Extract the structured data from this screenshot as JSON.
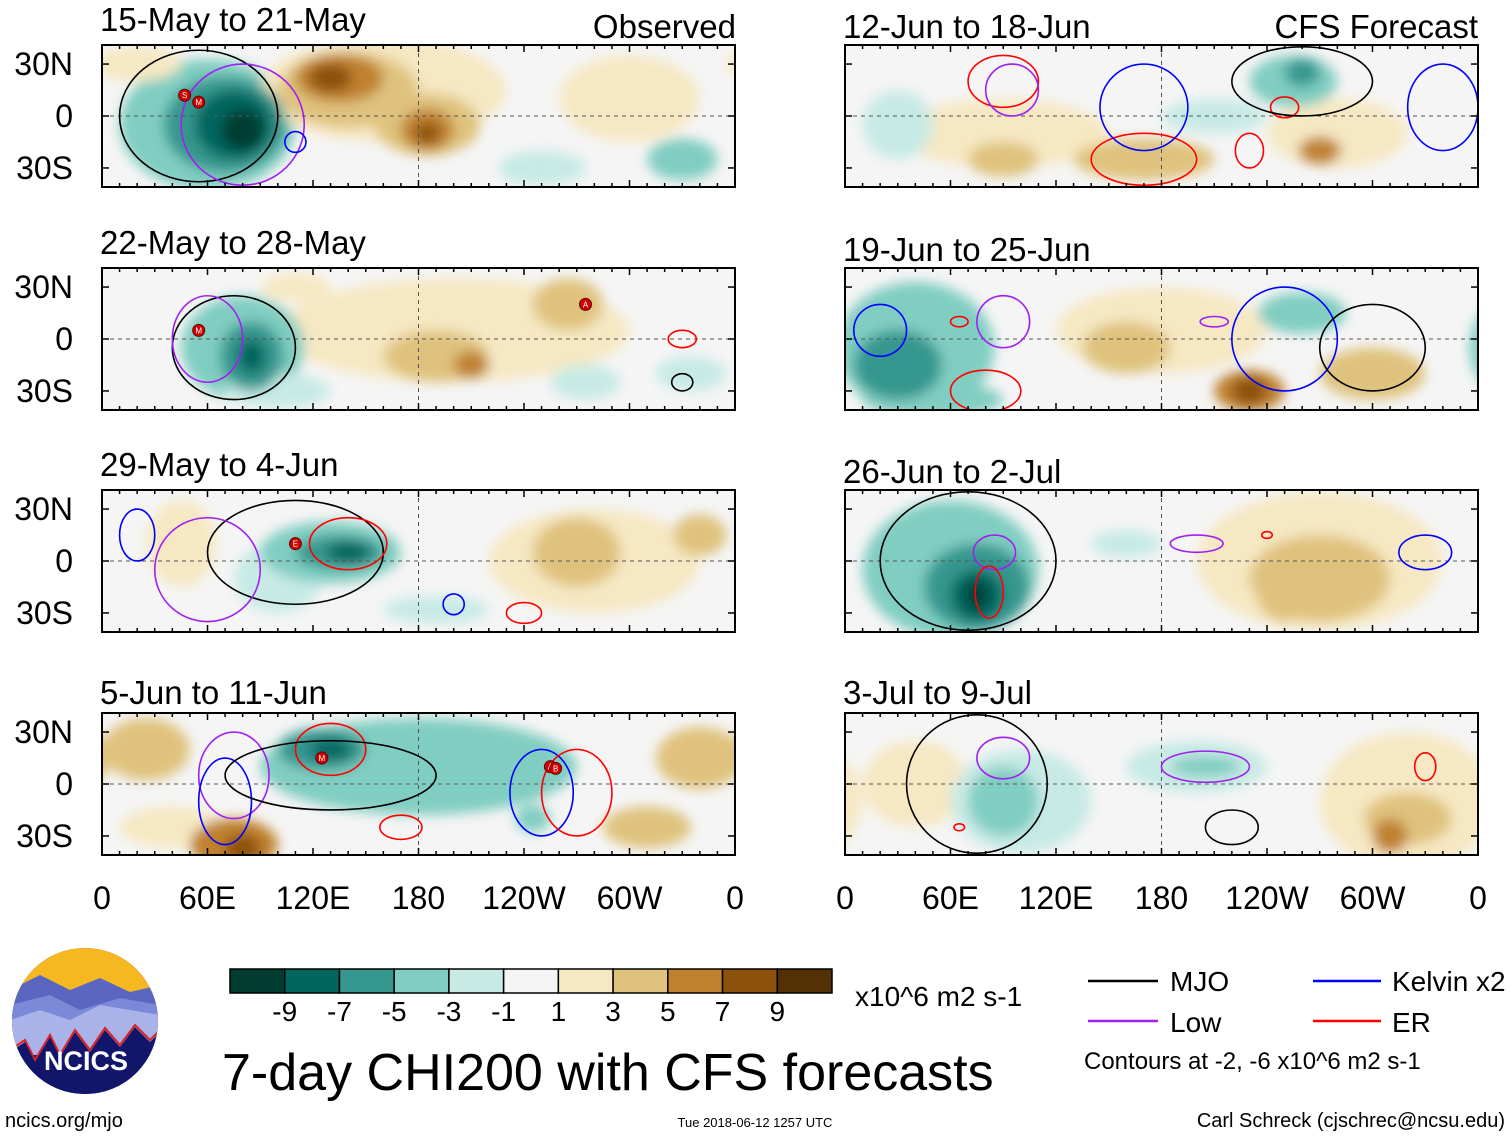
{
  "figure": {
    "title": "7-day CHI200 with CFS forecasts",
    "website": "ncics.org/mjo",
    "timestamp": "Tue 2018-06-12 1257 UTC",
    "author": "Carl Schreck (cjschrec@ncsu.edu)",
    "logo_text": "NCICS",
    "observed_label": "Observed",
    "forecast_label": "CFS Forecast"
  },
  "axes": {
    "lat_labels": [
      "30N",
      "0",
      "30S"
    ],
    "lon_labels": [
      "0",
      "60E",
      "120E",
      "180",
      "120W",
      "60W",
      "0"
    ]
  },
  "colorbar": {
    "units": "x10^6 m2 s-1",
    "labels": [
      "-9",
      "-7",
      "-5",
      "-3",
      "-1",
      "1",
      "3",
      "5",
      "7",
      "9"
    ],
    "colors": [
      "#003c30",
      "#01665e",
      "#35978f",
      "#80cdc1",
      "#c7eae5",
      "#f5f5f5",
      "#f6e8c3",
      "#dfc27d",
      "#bf812d",
      "#8c510a",
      "#543005"
    ]
  },
  "legend": {
    "items": [
      {
        "label": "MJO",
        "color": "#000000"
      },
      {
        "label": "Kelvin x2",
        "color": "#0000ff"
      },
      {
        "label": "Low",
        "color": "#a020f0"
      },
      {
        "label": "ER",
        "color": "#ff0000"
      }
    ],
    "note": "Contours at -2, -6 x10^6 m2 s-1"
  },
  "chart_data": {
    "type": "map",
    "variable": "CHI200 anomaly",
    "lon_range": [
      0,
      360
    ],
    "lat_range": [
      -40,
      40
    ],
    "panels": [
      {
        "title": "15-May to 21-May",
        "kind": "observed",
        "shades": [
          [
            60,
            -5,
            50,
            38,
            -3
          ],
          [
            20,
            30,
            25,
            10,
            1
          ],
          [
            300,
            10,
            40,
            25,
            1
          ],
          [
            160,
            15,
            70,
            30,
            1
          ],
          [
            140,
            15,
            40,
            22,
            3
          ],
          [
            185,
            -5,
            30,
            18,
            3
          ],
          [
            135,
            22,
            25,
            14,
            5
          ],
          [
            185,
            -8,
            15,
            12,
            5
          ],
          [
            185,
            -10,
            7,
            6,
            7
          ],
          [
            130,
            22,
            12,
            8,
            7
          ],
          [
            250,
            -30,
            25,
            10,
            -1
          ],
          [
            330,
            -25,
            20,
            12,
            -3
          ],
          [
            70,
            -5,
            35,
            28,
            -5
          ],
          [
            75,
            -5,
            22,
            20,
            -7
          ],
          [
            80,
            -8,
            12,
            12,
            -9
          ]
        ],
        "contours": [
          [
            55,
            0,
            45,
            38,
            "MJO"
          ],
          [
            80,
            -5,
            35,
            35,
            "Low"
          ],
          [
            110,
            -15,
            6,
            6,
            "Kelvin"
          ]
        ],
        "storms": [
          [
            47,
            12,
            "S"
          ],
          [
            55,
            8,
            "M"
          ]
        ]
      },
      {
        "title": "22-May to 28-May",
        "kind": "observed",
        "shades": [
          [
            200,
            5,
            100,
            30,
            1
          ],
          [
            110,
            30,
            20,
            8,
            1
          ],
          [
            190,
            -10,
            30,
            15,
            3
          ],
          [
            265,
            20,
            20,
            15,
            3
          ],
          [
            210,
            -15,
            10,
            8,
            5
          ],
          [
            80,
            -5,
            35,
            30,
            -3
          ],
          [
            100,
            -30,
            30,
            10,
            -1
          ],
          [
            275,
            -25,
            20,
            10,
            -1
          ],
          [
            335,
            -20,
            20,
            10,
            -1
          ],
          [
            85,
            -10,
            18,
            20,
            -5
          ],
          [
            85,
            -10,
            8,
            10,
            -7
          ]
        ],
        "contours": [
          [
            75,
            -5,
            35,
            30,
            "MJO"
          ],
          [
            60,
            0,
            20,
            25,
            "Low"
          ],
          [
            330,
            0,
            8,
            5,
            "ER"
          ],
          [
            330,
            -25,
            6,
            5,
            "MJO"
          ]
        ],
        "storms": [
          [
            55,
            5,
            "M"
          ],
          [
            275,
            20,
            "A"
          ]
        ]
      },
      {
        "title": "29-May to 4-Jun",
        "kind": "observed",
        "shades": [
          [
            280,
            0,
            60,
            30,
            1
          ],
          [
            45,
            10,
            20,
            25,
            1
          ],
          [
            270,
            5,
            25,
            20,
            3
          ],
          [
            340,
            15,
            15,
            12,
            3
          ],
          [
            100,
            -10,
            25,
            20,
            -1
          ],
          [
            190,
            -28,
            30,
            8,
            -1
          ],
          [
            130,
            5,
            40,
            18,
            -3
          ],
          [
            135,
            5,
            25,
            10,
            -5
          ],
          [
            140,
            5,
            12,
            6,
            -7
          ]
        ],
        "contours": [
          [
            110,
            5,
            50,
            30,
            "MJO"
          ],
          [
            140,
            10,
            22,
            15,
            "ER"
          ],
          [
            20,
            15,
            10,
            15,
            "Kelvin"
          ],
          [
            60,
            -5,
            30,
            30,
            "Low"
          ],
          [
            240,
            -30,
            10,
            6,
            "ER"
          ],
          [
            200,
            -25,
            6,
            6,
            "Kelvin"
          ]
        ],
        "storms": [
          [
            110,
            10,
            "E"
          ]
        ]
      },
      {
        "title": "5-Jun to 11-Jun",
        "kind": "observed",
        "shades": [
          [
            40,
            -25,
            30,
            12,
            1
          ],
          [
            180,
            10,
            90,
            28,
            -3
          ],
          [
            25,
            20,
            25,
            18,
            3
          ],
          [
            310,
            -25,
            25,
            12,
            3
          ],
          [
            340,
            15,
            25,
            18,
            3
          ],
          [
            75,
            -35,
            25,
            15,
            5
          ],
          [
            80,
            -37,
            10,
            8,
            7
          ],
          [
            245,
            -20,
            10,
            8,
            -3
          ],
          [
            125,
            20,
            25,
            12,
            -5
          ],
          [
            130,
            20,
            12,
            6,
            -7
          ]
        ],
        "contours": [
          [
            75,
            5,
            20,
            25,
            "Low"
          ],
          [
            70,
            -10,
            15,
            25,
            "Kelvin"
          ],
          [
            130,
            20,
            20,
            15,
            "ER"
          ],
          [
            130,
            5,
            60,
            20,
            "MJO"
          ],
          [
            170,
            -25,
            12,
            7,
            "ER"
          ],
          [
            250,
            -5,
            18,
            25,
            "Kelvin"
          ],
          [
            270,
            -5,
            20,
            25,
            "ER"
          ]
        ],
        "storms": [
          [
            125,
            15,
            "M"
          ],
          [
            255,
            10,
            "A"
          ],
          [
            258,
            9,
            "B"
          ]
        ]
      },
      {
        "title": "12-Jun to 18-Jun",
        "kind": "forecast",
        "shades": [
          [
            90,
            -10,
            60,
            20,
            1
          ],
          [
            280,
            -10,
            40,
            20,
            1
          ],
          [
            90,
            -25,
            20,
            10,
            3
          ],
          [
            170,
            -25,
            40,
            12,
            3
          ],
          [
            270,
            -20,
            12,
            8,
            5
          ],
          [
            210,
            0,
            30,
            10,
            -1
          ],
          [
            30,
            -5,
            20,
            20,
            -1
          ],
          [
            255,
            20,
            25,
            15,
            -3
          ],
          [
            260,
            25,
            10,
            8,
            -5
          ]
        ],
        "contours": [
          [
            90,
            20,
            20,
            15,
            "ER"
          ],
          [
            95,
            15,
            15,
            15,
            "Low"
          ],
          [
            170,
            -25,
            30,
            15,
            "ER"
          ],
          [
            230,
            -20,
            8,
            10,
            "ER"
          ],
          [
            250,
            5,
            8,
            6,
            "ER"
          ],
          [
            170,
            5,
            25,
            25,
            "Kelvin"
          ],
          [
            340,
            5,
            20,
            25,
            "Kelvin"
          ],
          [
            260,
            20,
            40,
            20,
            "MJO"
          ]
        ],
        "storms": []
      },
      {
        "title": "19-Jun to 25-Jun",
        "kind": "forecast",
        "shades": [
          [
            180,
            5,
            60,
            25,
            1
          ],
          [
            160,
            -5,
            25,
            15,
            3
          ],
          [
            300,
            -20,
            30,
            15,
            3
          ],
          [
            230,
            -30,
            20,
            12,
            5
          ],
          [
            230,
            -30,
            10,
            8,
            7
          ],
          [
            40,
            -5,
            45,
            38,
            -3
          ],
          [
            50,
            -35,
            40,
            10,
            -3
          ],
          [
            260,
            15,
            25,
            12,
            -3
          ],
          [
            30,
            -15,
            25,
            20,
            -5
          ]
        ],
        "contours": [
          [
            20,
            5,
            15,
            15,
            "Kelvin"
          ],
          [
            90,
            10,
            15,
            15,
            "Low"
          ],
          [
            80,
            -30,
            20,
            12,
            "ER"
          ],
          [
            65,
            10,
            5,
            3,
            "ER"
          ],
          [
            210,
            10,
            8,
            3,
            "Low"
          ],
          [
            250,
            0,
            30,
            30,
            "Kelvin"
          ],
          [
            300,
            -5,
            30,
            25,
            "MJO"
          ]
        ],
        "storms": []
      },
      {
        "title": "26-Jun to 2-Jul",
        "kind": "forecast",
        "shades": [
          [
            270,
            0,
            70,
            40,
            1
          ],
          [
            270,
            -10,
            40,
            25,
            3
          ],
          [
            250,
            -20,
            15,
            15,
            3
          ],
          [
            160,
            10,
            20,
            8,
            -1
          ],
          [
            60,
            -5,
            50,
            40,
            -3
          ],
          [
            75,
            -15,
            30,
            25,
            -5
          ],
          [
            75,
            -20,
            15,
            15,
            -7
          ],
          [
            75,
            -20,
            6,
            8,
            -9
          ]
        ],
        "contours": [
          [
            70,
            0,
            50,
            40,
            "MJO"
          ],
          [
            85,
            5,
            12,
            10,
            "Low"
          ],
          [
            82,
            -18,
            8,
            15,
            "ER"
          ],
          [
            200,
            10,
            15,
            5,
            "Low"
          ],
          [
            240,
            15,
            3,
            2,
            "ER"
          ],
          [
            330,
            5,
            15,
            10,
            "Kelvin"
          ]
        ],
        "storms": []
      },
      {
        "title": "3-Jul to 9-Jul",
        "kind": "forecast",
        "shades": [
          [
            320,
            -10,
            50,
            40,
            1
          ],
          [
            40,
            0,
            30,
            25,
            1
          ],
          [
            320,
            -20,
            25,
            15,
            3
          ],
          [
            310,
            -30,
            10,
            10,
            5
          ],
          [
            200,
            10,
            40,
            15,
            -1
          ],
          [
            100,
            -10,
            40,
            30,
            -1
          ],
          [
            205,
            10,
            20,
            6,
            -3
          ],
          [
            90,
            -10,
            20,
            20,
            -3
          ]
        ],
        "contours": [
          [
            75,
            0,
            40,
            40,
            "MJO"
          ],
          [
            90,
            15,
            15,
            12,
            "Low"
          ],
          [
            205,
            10,
            25,
            9,
            "Low"
          ],
          [
            220,
            -25,
            15,
            10,
            "MJO"
          ],
          [
            330,
            10,
            6,
            8,
            "ER"
          ],
          [
            65,
            -25,
            3,
            2,
            "ER"
          ]
        ],
        "storms": []
      }
    ]
  }
}
